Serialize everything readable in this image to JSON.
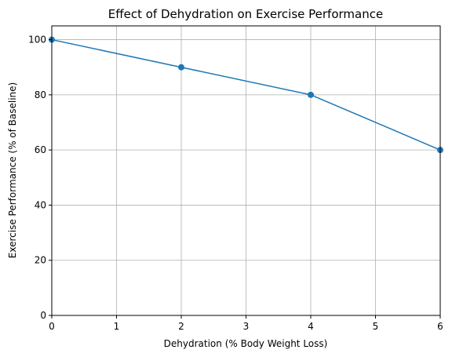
{
  "chart_data": {
    "type": "line",
    "title": "Effect of Dehydration on Exercise Performance",
    "xlabel": "Dehydration (% Body Weight Loss)",
    "ylabel": "Exercise Performance (% of Baseline)",
    "xlim": [
      0,
      6
    ],
    "ylim": [
      0,
      105
    ],
    "xticks": [
      0,
      1,
      2,
      3,
      4,
      5,
      6
    ],
    "yticks": [
      0,
      20,
      40,
      60,
      80,
      100
    ],
    "grid": true,
    "legend": "none",
    "series": [
      {
        "color": "#1f77b4",
        "marker": "circle",
        "x": [
          0,
          2,
          4,
          6
        ],
        "y": [
          100,
          90,
          80,
          60
        ]
      }
    ]
  }
}
